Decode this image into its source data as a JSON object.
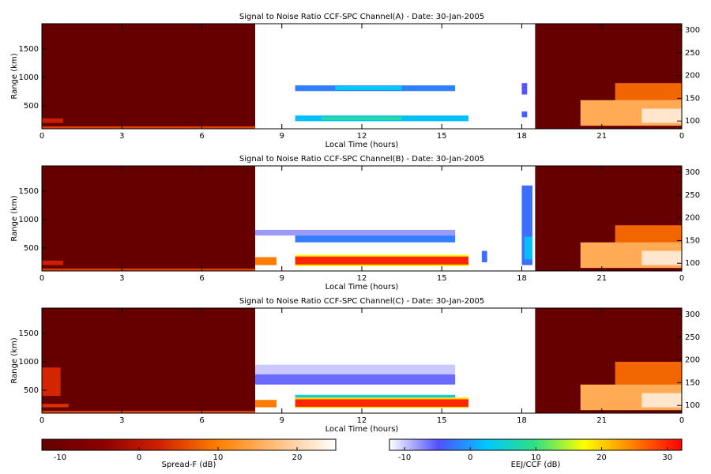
{
  "chart_data": [
    {
      "type": "heatmap",
      "title": "Signal to Noise Ratio CCF-SPC Channel(A) - Date: 30-Jan-2005",
      "xlabel": "Local Time (hours)",
      "ylabel": "Range (km)",
      "xlim": [
        0,
        24
      ],
      "xticks": [
        0,
        3,
        6,
        9,
        12,
        15,
        18,
        21,
        {
          "value": 24,
          "label": "0"
        }
      ],
      "ylim": [
        97,
        1944
      ],
      "yticks": [
        500,
        1000,
        1500
      ],
      "y2lim": [
        83,
        314
      ],
      "y2ticks": [
        100,
        150,
        200,
        250,
        300
      ],
      "spread_f_patches": [
        {
          "x0": 0,
          "x1": 8,
          "y0": 97,
          "y1": 1944,
          "value": -12
        },
        {
          "x0": 18.5,
          "x1": 24,
          "y0": 97,
          "y1": 1944,
          "value": -12
        },
        {
          "x0": 0,
          "x1": 8,
          "y0": 100,
          "y1": 140,
          "value": 5
        },
        {
          "x0": 0,
          "x1": 0.8,
          "y0": 200,
          "y1": 280,
          "value": 2
        },
        {
          "x0": 21.5,
          "x1": 24,
          "y0": 500,
          "y1": 900,
          "value": 8
        },
        {
          "x0": 20.2,
          "x1": 24,
          "y0": 150,
          "y1": 600,
          "value": 15
        },
        {
          "x0": 22.5,
          "x1": 24,
          "y0": 200,
          "y1": 450,
          "value": 22
        }
      ],
      "eej_patches": [
        {
          "x0": 9.5,
          "x1": 16,
          "y0": 230,
          "y1": 330,
          "value": 2
        },
        {
          "x0": 10.5,
          "x1": 13.5,
          "y0": 250,
          "y1": 310,
          "value": 8
        },
        {
          "x0": 9.5,
          "x1": 15.5,
          "y0": 760,
          "y1": 860,
          "value": -2
        },
        {
          "x0": 11,
          "x1": 13.5,
          "y0": 780,
          "y1": 850,
          "value": 3
        },
        {
          "x0": 18,
          "x1": 18.2,
          "y0": 700,
          "y1": 900,
          "value": -5
        },
        {
          "x0": 18,
          "x1": 18.2,
          "y0": 300,
          "y1": 400,
          "value": -4
        }
      ]
    },
    {
      "type": "heatmap",
      "title": "Signal to Noise Ratio CCF-SPC Channel(B) - Date: 30-Jan-2005",
      "xlabel": "Local Time (hours)",
      "ylabel": "Range (km)",
      "xlim": [
        0,
        24
      ],
      "xticks": [
        0,
        3,
        6,
        9,
        12,
        15,
        18,
        21,
        {
          "value": 24,
          "label": "0"
        }
      ],
      "ylim": [
        97,
        1944
      ],
      "yticks": [
        500,
        1000,
        1500
      ],
      "y2lim": [
        83,
        314
      ],
      "y2ticks": [
        100,
        150,
        200,
        250,
        300
      ],
      "spread_f_patches": [
        {
          "x0": 0,
          "x1": 8,
          "y0": 97,
          "y1": 1944,
          "value": -12
        },
        {
          "x0": 18.5,
          "x1": 24,
          "y0": 97,
          "y1": 1944,
          "value": -12
        },
        {
          "x0": 0,
          "x1": 8,
          "y0": 100,
          "y1": 140,
          "value": 5
        },
        {
          "x0": 0,
          "x1": 0.8,
          "y0": 200,
          "y1": 280,
          "value": 2
        },
        {
          "x0": 21.5,
          "x1": 24,
          "y0": 500,
          "y1": 900,
          "value": 8
        },
        {
          "x0": 20.2,
          "x1": 24,
          "y0": 150,
          "y1": 600,
          "value": 15
        },
        {
          "x0": 22.5,
          "x1": 24,
          "y0": 200,
          "y1": 450,
          "value": 22
        }
      ],
      "eej_patches": [
        {
          "x0": 8,
          "x1": 15.5,
          "y0": 720,
          "y1": 820,
          "value": -8
        },
        {
          "x0": 9.5,
          "x1": 15.5,
          "y0": 600,
          "y1": 720,
          "value": -2
        },
        {
          "x0": 16.5,
          "x1": 16.7,
          "y0": 250,
          "y1": 450,
          "value": -3
        },
        {
          "x0": 18,
          "x1": 18.4,
          "y0": 200,
          "y1": 1600,
          "value": -3
        },
        {
          "x0": 18.1,
          "x1": 18.4,
          "y0": 300,
          "y1": 700,
          "value": 2
        },
        {
          "x0": 9.5,
          "x1": 16,
          "y0": 180,
          "y1": 380,
          "value": 18
        },
        {
          "x0": 9.5,
          "x1": 16,
          "y0": 210,
          "y1": 350,
          "value": 30
        },
        {
          "x0": 8,
          "x1": 8.8,
          "y0": 200,
          "y1": 340,
          "value": 25
        }
      ]
    },
    {
      "type": "heatmap",
      "title": "Signal to Noise Ratio CCF-SPC Channel(C) - Date: 30-Jan-2005",
      "xlabel": "Local Time (hours)",
      "ylabel": "Range (km)",
      "xlim": [
        0,
        24
      ],
      "xticks": [
        0,
        3,
        6,
        9,
        12,
        15,
        18,
        21,
        {
          "value": 24,
          "label": "0"
        }
      ],
      "ylim": [
        97,
        1944
      ],
      "yticks": [
        500,
        1000,
        1500
      ],
      "y2lim": [
        83,
        314
      ],
      "y2ticks": [
        100,
        150,
        200,
        250,
        300
      ],
      "spread_f_patches": [
        {
          "x0": 0,
          "x1": 8,
          "y0": 97,
          "y1": 1944,
          "value": -12
        },
        {
          "x0": 18.5,
          "x1": 24,
          "y0": 97,
          "y1": 1944,
          "value": -12
        },
        {
          "x0": 0,
          "x1": 8,
          "y0": 100,
          "y1": 140,
          "value": 5
        },
        {
          "x0": 0,
          "x1": 0.7,
          "y0": 400,
          "y1": 900,
          "value": 3
        },
        {
          "x0": 0,
          "x1": 1,
          "y0": 200,
          "y1": 260,
          "value": 4
        },
        {
          "x0": 21.5,
          "x1": 24,
          "y0": 500,
          "y1": 1000,
          "value": 8
        },
        {
          "x0": 20.2,
          "x1": 24,
          "y0": 150,
          "y1": 600,
          "value": 15
        },
        {
          "x0": 22.5,
          "x1": 24,
          "y0": 200,
          "y1": 450,
          "value": 22
        }
      ],
      "eej_patches": [
        {
          "x0": 8,
          "x1": 15.5,
          "y0": 780,
          "y1": 950,
          "value": -10
        },
        {
          "x0": 8,
          "x1": 15.5,
          "y0": 600,
          "y1": 780,
          "value": -6
        },
        {
          "x0": 9.5,
          "x1": 15.5,
          "y0": 370,
          "y1": 420,
          "value": 5
        },
        {
          "x0": 9.5,
          "x1": 16,
          "y0": 190,
          "y1": 370,
          "value": 20
        },
        {
          "x0": 9.5,
          "x1": 16,
          "y0": 210,
          "y1": 340,
          "value": 30
        },
        {
          "x0": 8,
          "x1": 8.8,
          "y0": 200,
          "y1": 330,
          "value": 25
        }
      ]
    }
  ],
  "colorbars": [
    {
      "label": "Spread-F (dB)",
      "lim": [
        -12.3,
        24.9
      ],
      "ticks": [
        -10,
        0,
        10,
        20
      ],
      "colors": [
        "#640000",
        "#8a0000",
        "#d02000",
        "#ff8000",
        "#ffc080",
        "#ffffff"
      ]
    },
    {
      "label": "EEJ/CCF (dB)",
      "lim": [
        -12.3,
        32.2
      ],
      "ticks": [
        -10,
        0,
        10,
        20,
        30
      ],
      "colors": [
        "#ffffff",
        "#5050ff",
        "#00c8ff",
        "#30e080",
        "#ffff00",
        "#ff8000",
        "#ff0000"
      ]
    }
  ]
}
